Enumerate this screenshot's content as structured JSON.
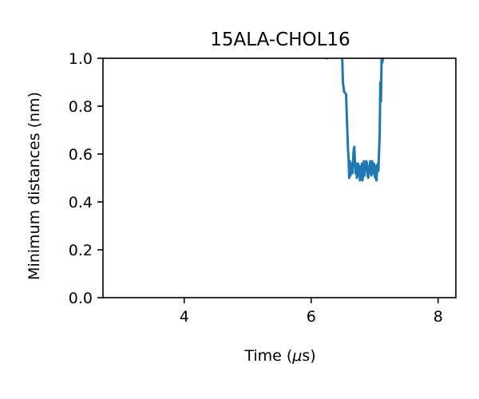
{
  "chart_data": {
    "type": "line",
    "title": "15ALA-CHOL16",
    "xlabel_prefix": "Time (",
    "xlabel_symbol": "μ",
    "xlabel_suffix": "s)",
    "ylabel": "Minimum distances (nm)",
    "xlim": [
      2.72,
      8.28
    ],
    "ylim": [
      0.0,
      1.0
    ],
    "xticks": [
      4,
      6,
      8
    ],
    "xtick_labels": [
      "4",
      "6",
      "8"
    ],
    "yticks": [
      0.0,
      0.2,
      0.4,
      0.6,
      0.8,
      1.0
    ],
    "ytick_labels": [
      "0.0",
      "0.2",
      "0.4",
      "0.6",
      "0.8",
      "1.0"
    ],
    "grid": false,
    "series": [
      {
        "color": "#1f77b4",
        "x": [
          6.49,
          6.5,
          6.52,
          6.55,
          6.58,
          6.59,
          6.6,
          6.61,
          6.62,
          6.63,
          6.64,
          6.65,
          6.66,
          6.67,
          6.68,
          6.69,
          6.7,
          6.71,
          6.72,
          6.73,
          6.74,
          6.75,
          6.76,
          6.77,
          6.78,
          6.79,
          6.8,
          6.81,
          6.82,
          6.83,
          6.84,
          6.85,
          6.86,
          6.87,
          6.88,
          6.89,
          6.9,
          6.91,
          6.92,
          6.93,
          6.94,
          6.95,
          6.96,
          6.97,
          6.98,
          6.99,
          7.0,
          7.01,
          7.02,
          7.03,
          7.04,
          7.05,
          7.06,
          7.07,
          7.08,
          7.09,
          7.1,
          7.11,
          7.12,
          7.13
        ],
        "y": [
          1.0,
          0.9,
          0.86,
          0.85,
          0.62,
          0.58,
          0.5,
          0.57,
          0.51,
          0.55,
          0.56,
          0.52,
          0.57,
          0.62,
          0.63,
          0.57,
          0.52,
          0.56,
          0.5,
          0.55,
          0.56,
          0.51,
          0.55,
          0.49,
          0.53,
          0.51,
          0.56,
          0.49,
          0.52,
          0.57,
          0.51,
          0.55,
          0.53,
          0.57,
          0.56,
          0.51,
          0.5,
          0.55,
          0.52,
          0.57,
          0.53,
          0.51,
          0.57,
          0.52,
          0.55,
          0.56,
          0.51,
          0.5,
          0.55,
          0.49,
          0.53,
          0.56,
          0.53,
          0.61,
          0.68,
          0.9,
          0.82,
          1.0,
          0.98,
          1.0
        ]
      }
    ],
    "stray_segment": {
      "x": [
        6.24,
        6.25
      ],
      "y": [
        1.0,
        0.995
      ]
    }
  }
}
